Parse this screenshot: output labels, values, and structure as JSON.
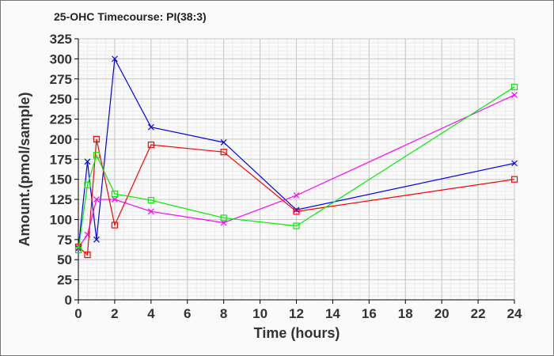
{
  "chart_data": {
    "type": "line",
    "title": "25-OHC Timecourse: PI(38:3)",
    "xlabel": "Time (hours)",
    "ylabel": "Amount.(pmol/sample)",
    "xlim": [
      0,
      24
    ],
    "ylim": [
      0,
      325
    ],
    "xticks": [
      0,
      2,
      4,
      6,
      8,
      10,
      12,
      14,
      16,
      18,
      20,
      22,
      24
    ],
    "yticks": [
      0,
      25,
      50,
      75,
      100,
      125,
      150,
      175,
      200,
      225,
      250,
      275,
      300,
      325
    ],
    "grid": true,
    "x": [
      0,
      0.5,
      1,
      2,
      4,
      8,
      12,
      24
    ],
    "series": [
      {
        "name": "blue",
        "color": "#0000ff",
        "marker": "x",
        "values": [
          64,
          172,
          75,
          300,
          215,
          196,
          112,
          170
        ]
      },
      {
        "name": "magenta",
        "color": "#ff00ff",
        "marker": "x",
        "values": [
          65,
          81,
          125,
          125,
          110,
          96,
          130,
          255
        ]
      },
      {
        "name": "red",
        "color": "#ff0000",
        "marker": "square",
        "values": [
          66,
          56,
          200,
          93,
          193,
          184,
          110,
          150
        ]
      },
      {
        "name": "green",
        "color": "#00ee00",
        "marker": "square",
        "values": [
          62,
          143,
          180,
          132,
          124,
          102,
          92,
          265
        ]
      }
    ]
  }
}
